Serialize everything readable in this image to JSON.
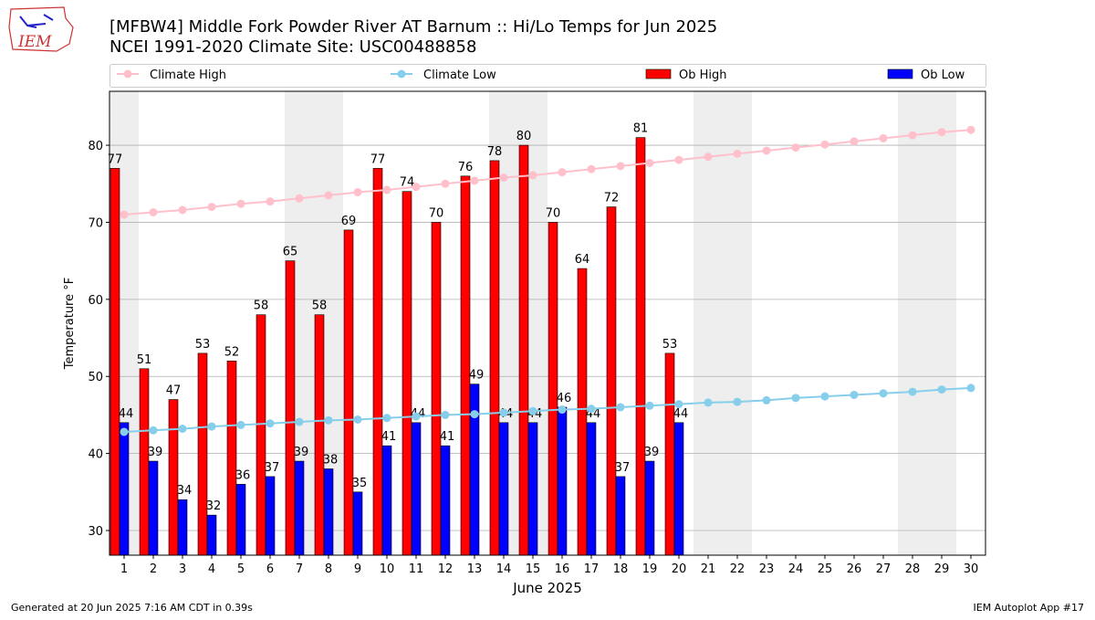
{
  "logo": "IEM",
  "footer": {
    "left": "Generated at 20 Jun 2025 7:16 AM CDT in 0.39s",
    "right": "IEM Autoplot App #17"
  },
  "chart_data": {
    "type": "bar",
    "title": "[MFBW4] Middle Fork Powder River  AT Barnum :: Hi/Lo Temps for Jun 2025",
    "subtitle": "NCEI 1991-2020 Climate Site: USC00488858",
    "xlabel": "June 2025",
    "ylabel": "Temperature °F",
    "x": [
      1,
      2,
      3,
      4,
      5,
      6,
      7,
      8,
      9,
      10,
      11,
      12,
      13,
      14,
      15,
      16,
      17,
      18,
      19,
      20,
      21,
      22,
      23,
      24,
      25,
      26,
      27,
      28,
      29,
      30
    ],
    "series": [
      {
        "name": "Climate High",
        "type": "line",
        "color": "#ffc0cb",
        "values": [
          71.0,
          71.3,
          71.6,
          72.0,
          72.4,
          72.7,
          73.1,
          73.5,
          73.9,
          74.2,
          74.6,
          75.0,
          75.4,
          75.8,
          76.1,
          76.5,
          76.9,
          77.3,
          77.7,
          78.1,
          78.5,
          78.9,
          79.3,
          79.7,
          80.1,
          80.5,
          80.9,
          81.3,
          81.7,
          82.0
        ]
      },
      {
        "name": "Climate Low",
        "type": "line",
        "color": "#87ceeb",
        "values": [
          42.8,
          43.0,
          43.2,
          43.5,
          43.7,
          43.9,
          44.1,
          44.3,
          44.4,
          44.6,
          44.8,
          45.0,
          45.1,
          45.3,
          45.5,
          45.7,
          45.8,
          46.0,
          46.2,
          46.4,
          46.6,
          46.7,
          46.9,
          47.2,
          47.4,
          47.6,
          47.8,
          48.0,
          48.3,
          48.5
        ]
      },
      {
        "name": "Ob High",
        "type": "bar",
        "color": "#ff0000",
        "values": [
          77,
          51,
          47,
          53,
          52,
          58,
          65,
          58,
          69,
          77,
          74,
          70,
          76,
          78,
          80,
          70,
          64,
          72,
          81,
          53,
          null,
          null,
          null,
          null,
          null,
          null,
          null,
          null,
          null,
          null
        ]
      },
      {
        "name": "Ob Low",
        "type": "bar",
        "color": "#0000ff",
        "values": [
          44,
          39,
          34,
          32,
          36,
          37,
          39,
          38,
          35,
          41,
          44,
          41,
          49,
          44,
          44,
          46,
          44,
          37,
          39,
          44,
          null,
          null,
          null,
          null,
          null,
          null,
          null,
          null,
          null,
          null
        ]
      }
    ],
    "weekend_days": [
      1,
      7,
      8,
      14,
      15,
      21,
      22,
      28,
      29
    ],
    "xlim": [
      0.5,
      30.5
    ],
    "xticks": [
      1,
      2,
      3,
      4,
      5,
      6,
      7,
      8,
      9,
      10,
      11,
      12,
      13,
      14,
      15,
      16,
      17,
      18,
      19,
      20,
      21,
      22,
      23,
      24,
      25,
      26,
      27,
      28,
      29,
      30
    ],
    "ylim": [
      26.8,
      87.0
    ],
    "yticks": [
      30,
      40,
      50,
      60,
      70,
      80
    ],
    "grid": true
  }
}
